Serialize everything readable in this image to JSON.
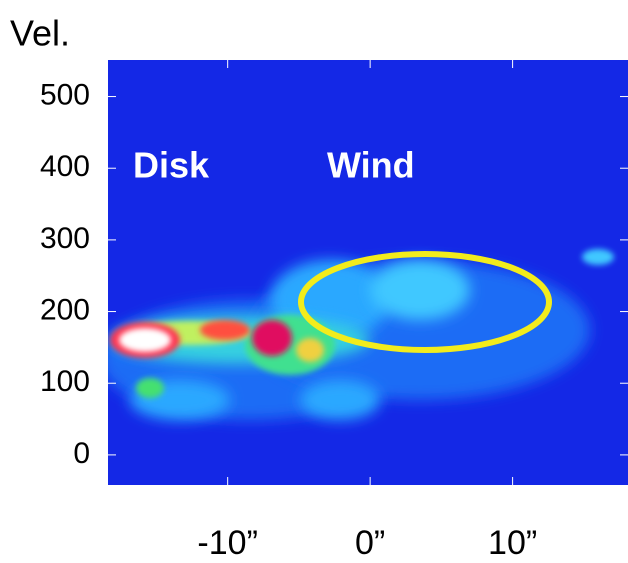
{
  "chart_data": {
    "type": "heatmap",
    "y_label": "Vel.",
    "annotations": [
      "Disk",
      "Wind"
    ],
    "xlim": [
      -18.4,
      18.1
    ],
    "ylim": [
      -42,
      551
    ],
    "xticks": [
      {
        "value": -10,
        "label": "-10”"
      },
      {
        "value": 0,
        "label": "0”"
      },
      {
        "value": 10,
        "label": "10”"
      }
    ],
    "yticks": [
      0,
      100,
      200,
      300,
      400,
      500
    ],
    "color": "#1428e6",
    "grid": false
  }
}
